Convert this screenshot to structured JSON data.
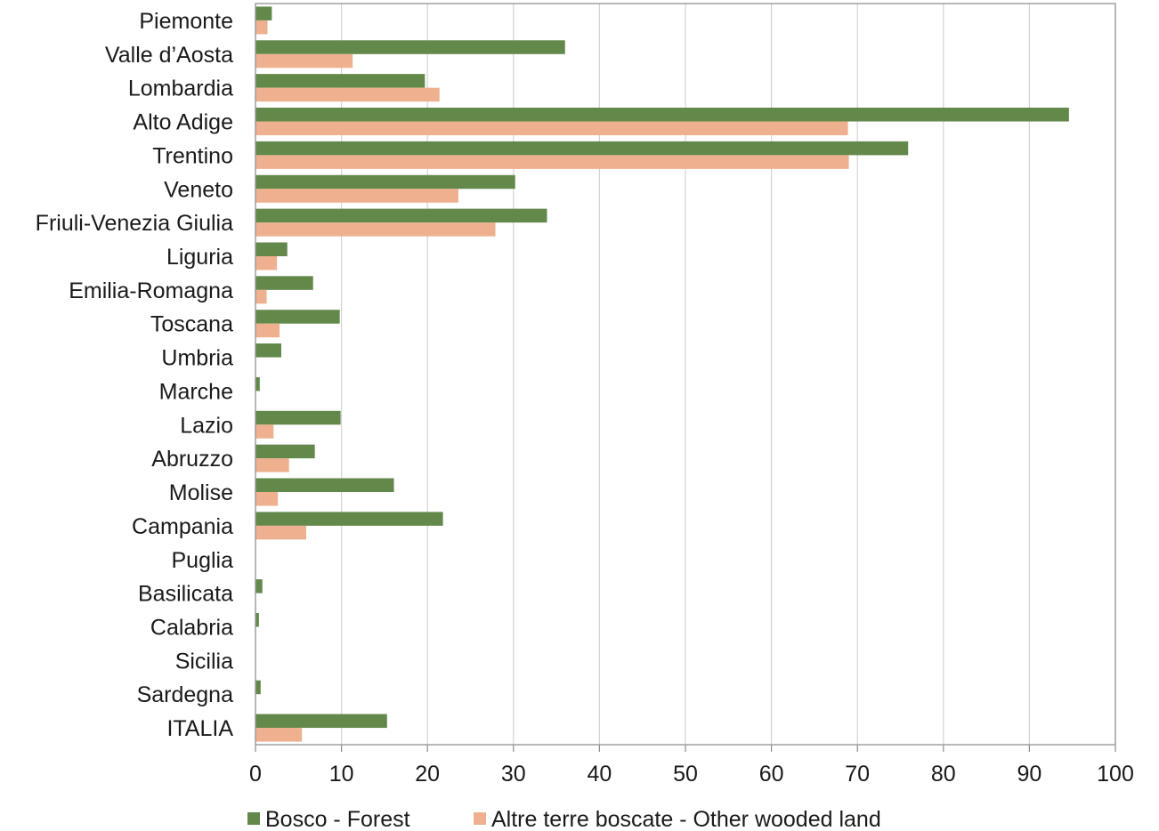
{
  "chart_data": {
    "type": "bar",
    "orientation": "horizontal",
    "title": "",
    "xlabel": "",
    "ylabel": "",
    "xlim": [
      0,
      100
    ],
    "x_ticks": [
      "0",
      "10",
      "20",
      "30",
      "40",
      "50",
      "60",
      "70",
      "80",
      "90",
      "100"
    ],
    "grid": "vertical gridlines on",
    "legend_position": "bottom",
    "categories": [
      "Piemonte",
      "Valle d’Aosta",
      "Lombardia",
      "Alto Adige",
      "Trentino",
      "Veneto",
      "Friuli-Venezia Giulia",
      "Liguria",
      "Emilia-Romagna",
      "Toscana",
      "Umbria",
      "Marche",
      "Lazio",
      "Abruzzo",
      "Molise",
      "Campania",
      "Puglia",
      "Basilicata",
      "Calabria",
      "Sicilia",
      "Sardegna",
      "ITALIA"
    ],
    "series": [
      {
        "name": "Bosco - Forest",
        "color": "#62884a",
        "values": [
          1.9,
          36.0,
          19.7,
          94.6,
          75.9,
          30.2,
          33.9,
          3.7,
          6.7,
          9.8,
          3.0,
          0.5,
          9.9,
          6.9,
          16.1,
          21.8,
          0.0,
          0.8,
          0.4,
          0.0,
          0.6,
          15.3
        ]
      },
      {
        "name": "Altre terre boscate - Other wooded land",
        "color": "#eeb08e",
        "values": [
          1.4,
          11.3,
          21.4,
          68.9,
          69.0,
          23.6,
          27.9,
          2.5,
          1.3,
          2.8,
          0.0,
          0.0,
          2.1,
          3.9,
          2.6,
          5.9,
          0.0,
          0.0,
          0.0,
          0.0,
          0.0,
          5.4
        ]
      }
    ]
  }
}
